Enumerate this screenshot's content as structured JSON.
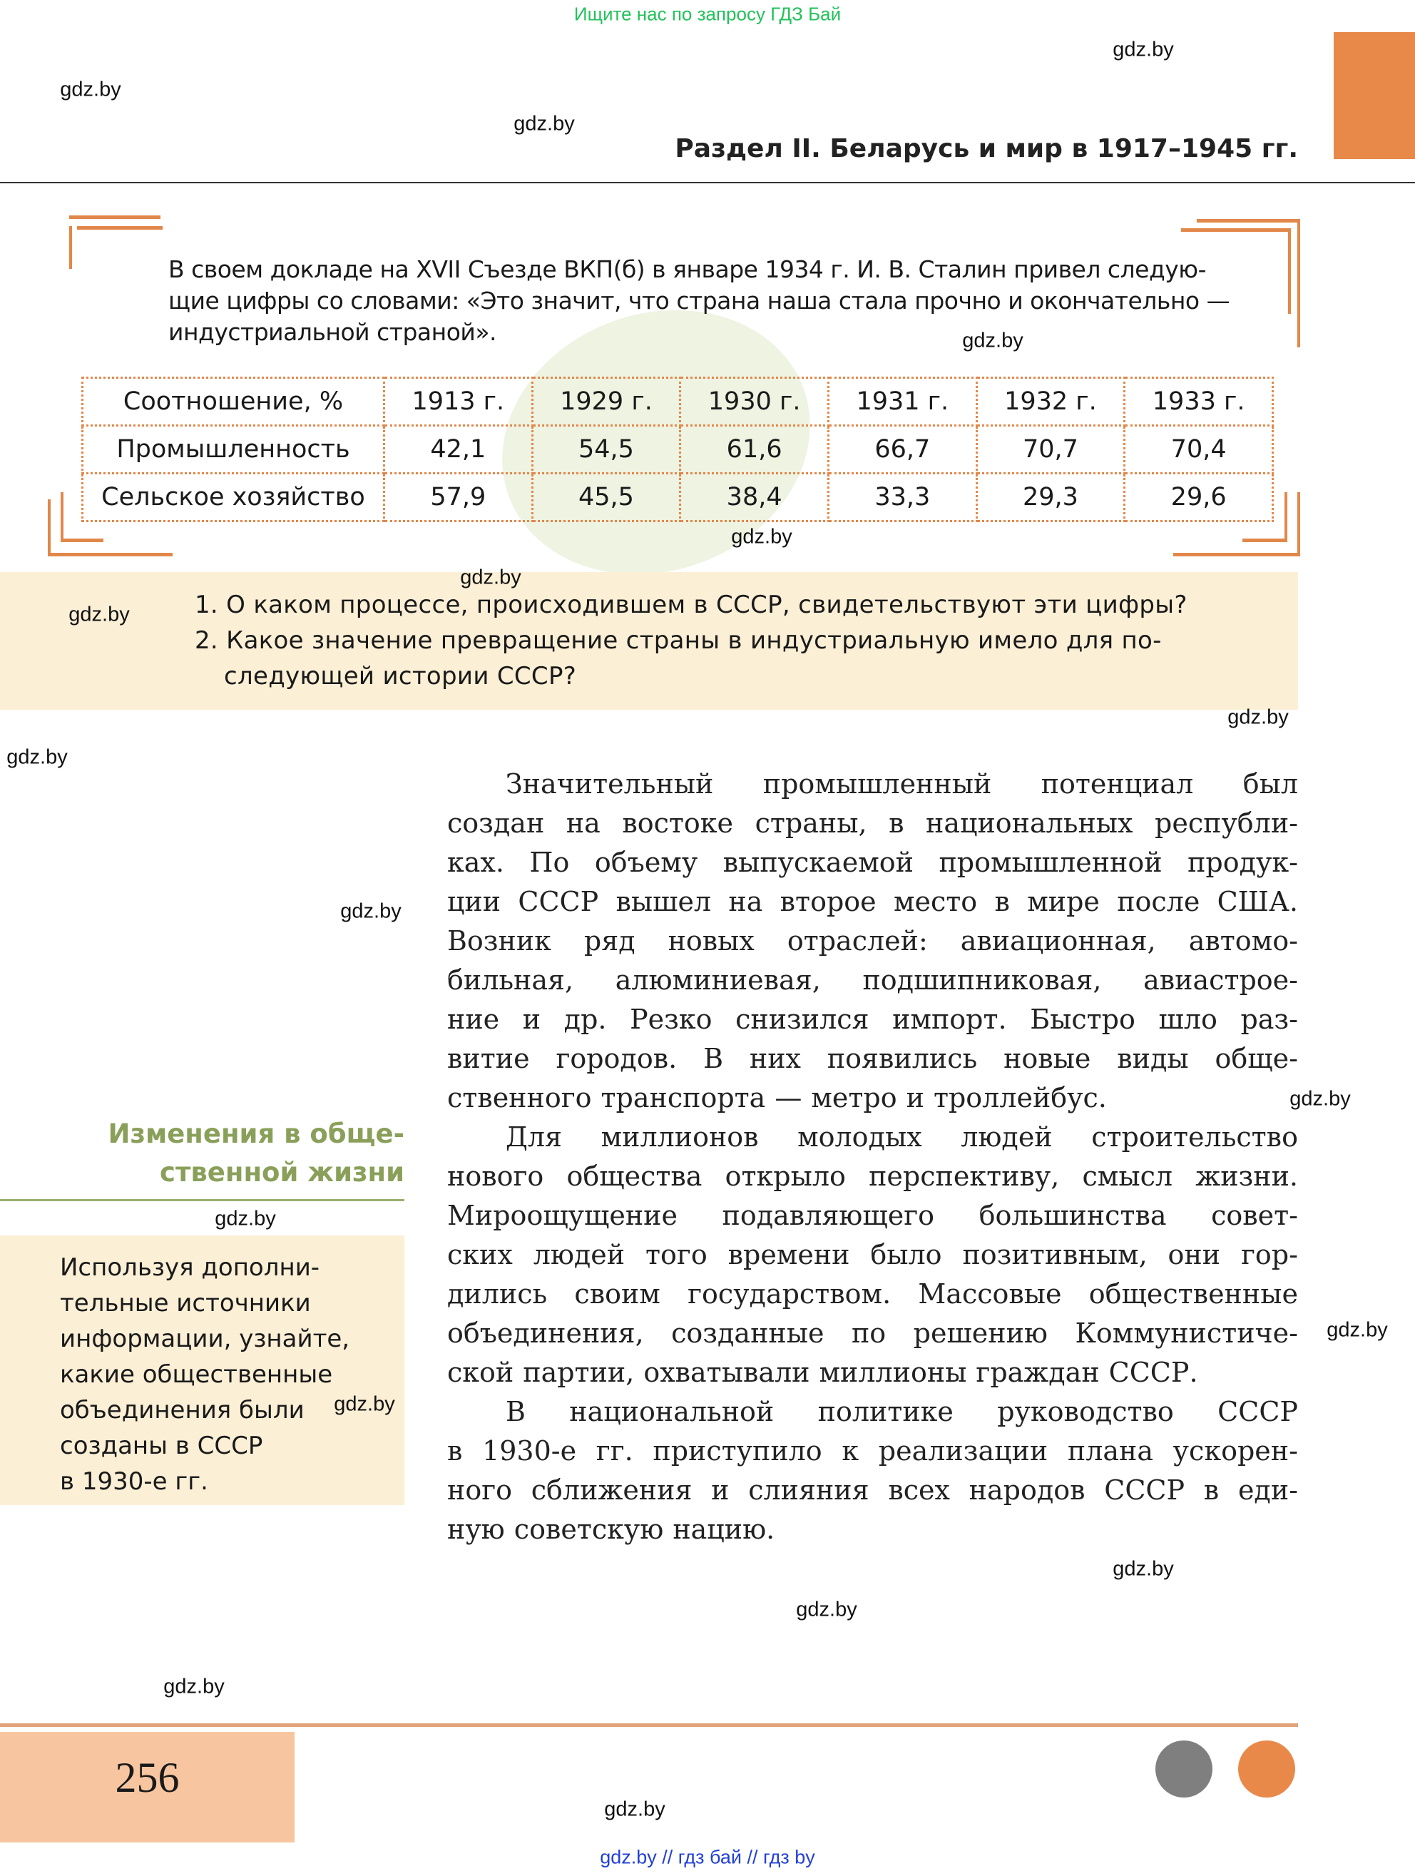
{
  "top_note": "Ищите нас по запросу ГДЗ Бай",
  "header": {
    "title": "Раздел II. Беларусь и мир в 1917–1945 гг."
  },
  "quote": {
    "lines": [
      "В своем докладе на XVII Съезде ВКП(б) в январе 1934 г. И. В. Сталин привел следую-",
      "щие цифры со словами: «Это значит, что страна наша стала прочно и окончательно —",
      "индустриальной страной»."
    ]
  },
  "table": {
    "headers": [
      "Соотношение, %",
      "1913 г.",
      "1929 г.",
      "1930 г.",
      "1931 г.",
      "1932 г.",
      "1933 г."
    ],
    "rows": [
      [
        "Промышленность",
        "42,1",
        "54,5",
        "61,6",
        "66,7",
        "70,7",
        "70,4"
      ],
      [
        "Сельское хозяйство",
        "57,9",
        "45,5",
        "38,4",
        "33,3",
        "29,3",
        "29,6"
      ]
    ]
  },
  "questions": [
    "1. О каком процессе, происходившем в СССР, свидетельствуют эти цифры?",
    "2. Какое значение превращение страны в индустриальную имело для по-",
    "следующей истории СССР?"
  ],
  "main_text": [
    "Значительный промышленный потенциал был",
    "создан на востоке страны, в национальных республи-",
    "ках. По объему выпускаемой промышленной продук-",
    "ции СССР вышел на второе место в мире после США.",
    "Возник ряд новых отраслей: авиационная, автомо-",
    "бильная, алюминиевая, подшипниковая, авиастрое-",
    "ние и др. Резко снизился импорт. Быстро шло раз-",
    "витие городов. В них появились новые виды обще-",
    "ственного транспорта — метро и троллейбус.",
    "Для миллионов молодых людей строительство",
    "нового общества открыло перспективу, смысл жизни.",
    "Мироощущение подавляющего большинства совет-",
    "ских людей того времени было позитивным, они гор-",
    "дились своим государством. Массовые общественные",
    "объединения, созданные по решению Коммунистиче-",
    "ской партии, охватывали миллионы граждан СССР.",
    "В национальной политике руководство СССР",
    "в 1930-е гг. приступило к реализации плана ускорен-",
    "ного сближения и слияния всех народов СССР в еди-",
    "ную советскую нацию."
  ],
  "side_heading": [
    "Изменения в обще-",
    "ственной жизни"
  ],
  "side_box": [
    "Используя дополни-",
    "тельные источники",
    "информации, узнайте,",
    "какие общественные",
    "объединения были",
    "созданы в СССР",
    "в 1930-е гг."
  ],
  "page_number": "256",
  "watermark": "gdz.by",
  "footer_link": "gdz.by  //  гдз бай  //  гдз by",
  "colors": {
    "accent": "#e8894a",
    "heading_green": "#8aa05a",
    "box_bg": "#fbefd6",
    "page_box": "#f7c6a0",
    "dot_gray": "#7f7f7f",
    "dot_orange": "#e8894a"
  }
}
